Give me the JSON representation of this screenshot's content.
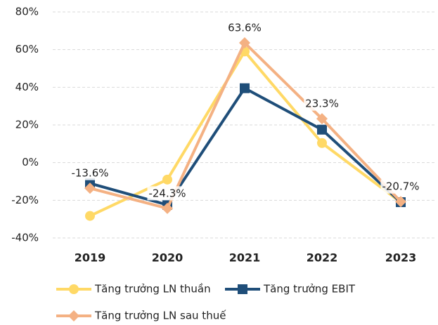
{
  "chart_data": {
    "type": "line",
    "categories": [
      "2019",
      "2020",
      "2021",
      "2022",
      "2023"
    ],
    "series": [
      {
        "name": "Tăng trưởng LN thuần",
        "color": "#ffd966",
        "marker": "circle",
        "values": [
          -28.3,
          -9,
          59,
          10.4,
          -21
        ]
      },
      {
        "name": "Tăng trưởng EBIT",
        "color": "#1f4e79",
        "marker": "square",
        "values": [
          -11,
          -22.4,
          39.5,
          17.5,
          -21
        ]
      },
      {
        "name": "Tăng trưởng LN sau thuế",
        "color": "#f4b183",
        "marker": "diamond",
        "values": [
          -13.6,
          -24.3,
          63.6,
          23.3,
          -20.7
        ],
        "value_labels": [
          "-13.6%",
          "-24.3%",
          "63.6%",
          "23.3%",
          "-20.7%"
        ]
      }
    ],
    "ylim": [
      -40,
      80
    ],
    "yticks": [
      {
        "value": -40,
        "label": "-40%"
      },
      {
        "value": -20,
        "label": "-20%"
      },
      {
        "value": 0,
        "label": "0%"
      },
      {
        "value": 20,
        "label": "20%"
      },
      {
        "value": 40,
        "label": "40%"
      },
      {
        "value": 60,
        "label": "60%"
      },
      {
        "value": 80,
        "label": "80%"
      }
    ],
    "grid": true,
    "legend": "bottom"
  }
}
